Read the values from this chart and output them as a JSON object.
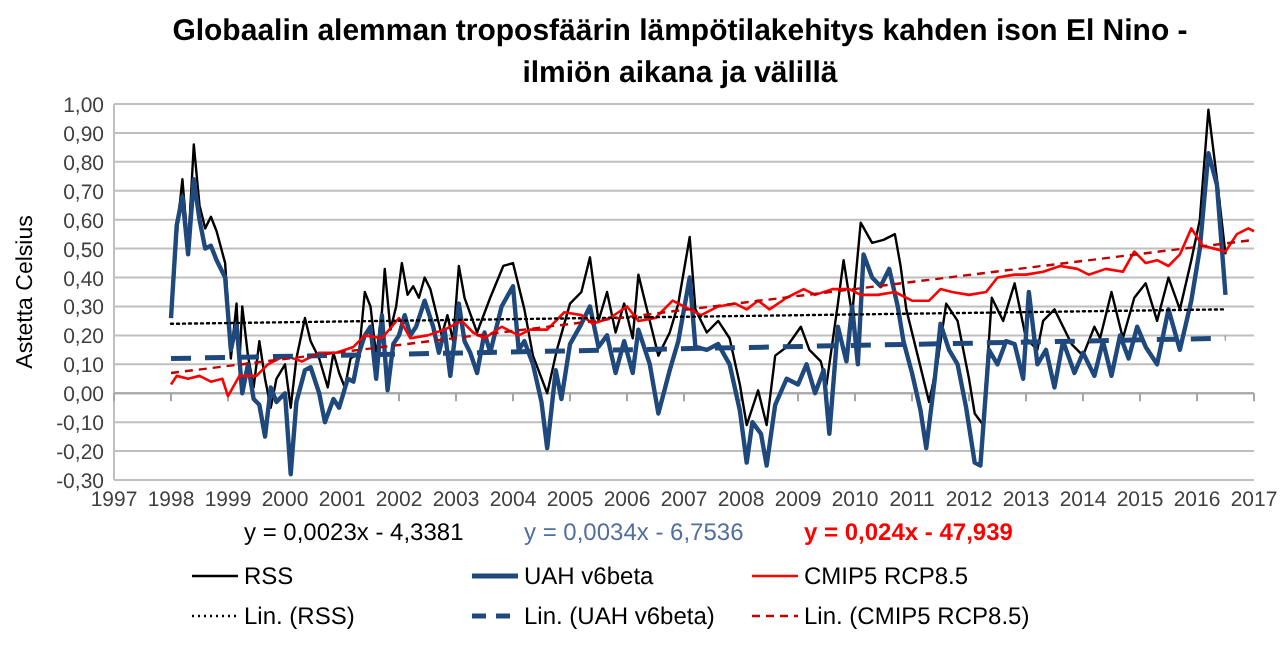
{
  "chart_data": {
    "type": "line",
    "title": "Globaalin alemman troposfäärin lämpötilakehitys kahden ison El Nino - ilmiön aikana ja välillä",
    "ylabel": "Astetta Celsius",
    "xlim": [
      1997,
      2017
    ],
    "xticks": [
      1997,
      1998,
      1999,
      2000,
      2001,
      2002,
      2003,
      2004,
      2005,
      2006,
      2007,
      2008,
      2009,
      2010,
      2011,
      2012,
      2013,
      2014,
      2015,
      2016,
      2017
    ],
    "ylim": [
      -0.3,
      1.0
    ],
    "yticks": [
      {
        "value": -0.3,
        "label": "-0,30"
      },
      {
        "value": -0.2,
        "label": "-0,20"
      },
      {
        "value": -0.1,
        "label": "-0,10"
      },
      {
        "value": 0,
        "label": "0,00"
      },
      {
        "value": 0.1,
        "label": "0,10"
      },
      {
        "value": 0.2,
        "label": "0,20"
      },
      {
        "value": 0.3,
        "label": "0,30"
      },
      {
        "value": 0.4,
        "label": "0,40"
      },
      {
        "value": 0.5,
        "label": "0,50"
      },
      {
        "value": 0.6,
        "label": "0,60"
      },
      {
        "value": 0.7,
        "label": "0,70"
      },
      {
        "value": 0.8,
        "label": "0,80"
      },
      {
        "value": 0.9,
        "label": "0,90"
      },
      {
        "value": 1.0,
        "label": "1,00"
      }
    ],
    "grid": "y",
    "legend": "bottom",
    "annotations": [
      "y = 0,0023x - 4,3381",
      "y = 0,0034x - 6,7536",
      "y = 0,024x - 47,939"
    ],
    "series": [
      {
        "name": "RSS",
        "color": "#000000",
        "x": [
          1998.0,
          1998.1,
          1998.2,
          1998.3,
          1998.4,
          1998.5,
          1998.6,
          1998.7,
          1998.8,
          1998.95,
          1999.05,
          1999.15,
          1999.2,
          1999.25,
          1999.35,
          1999.45,
          1999.55,
          1999.65,
          1999.75,
          1999.85,
          2000.0,
          2000.1,
          2000.2,
          2000.35,
          2000.45,
          2000.6,
          2000.75,
          2000.85,
          2000.95,
          2001.05,
          2001.15,
          2001.3,
          2001.4,
          2001.5,
          2001.6,
          2001.7,
          2001.75,
          2001.85,
          2001.95,
          2002.05,
          2002.15,
          2002.25,
          2002.35,
          2002.45,
          2002.55,
          2002.65,
          2002.75,
          2002.85,
          2002.95,
          2003.05,
          2003.15,
          2003.37,
          2003.6,
          2003.83,
          2004.0,
          2004.2,
          2004.35,
          2004.6,
          2004.77,
          2005.0,
          2005.2,
          2005.35,
          2005.5,
          2005.65,
          2005.8,
          2005.95,
          2006.1,
          2006.2,
          2006.4,
          2006.55,
          2006.75,
          2006.9,
          2007.1,
          2007.2,
          2007.4,
          2007.6,
          2007.8,
          2007.98,
          2008.1,
          2008.3,
          2008.45,
          2008.6,
          2008.8,
          2009.05,
          2009.2,
          2009.4,
          2009.5,
          2009.7,
          2009.8,
          2009.95,
          2010.1,
          2010.3,
          2010.5,
          2010.7,
          2010.8,
          2010.9,
          2011.1,
          2011.3,
          2011.45,
          2011.6,
          2011.8,
          2012.0,
          2012.1,
          2012.25,
          2012.4,
          2012.6,
          2012.8,
          2013.0,
          2013.2,
          2013.3,
          2013.5,
          2013.8,
          2014.0,
          2014.2,
          2014.3,
          2014.5,
          2014.7,
          2014.9,
          2015.1,
          2015.3,
          2015.5,
          2015.7,
          2015.9,
          2016.05,
          2016.2,
          2016.35,
          2016.5
        ],
        "values": [
          0.26,
          0.55,
          0.74,
          0.5,
          0.86,
          0.65,
          0.57,
          0.61,
          0.56,
          0.45,
          0.12,
          0.31,
          0.1,
          0.3,
          0.13,
          0.02,
          0.18,
          0.05,
          -0.05,
          0.05,
          0.1,
          -0.05,
          0.12,
          0.26,
          0.18,
          0.12,
          0.02,
          0.14,
          0.07,
          0.02,
          0.12,
          0.14,
          0.35,
          0.3,
          0.13,
          0.28,
          0.43,
          0.22,
          0.3,
          0.45,
          0.34,
          0.37,
          0.33,
          0.4,
          0.36,
          0.28,
          0.2,
          0.27,
          0.18,
          0.44,
          0.33,
          0.21,
          0.33,
          0.44,
          0.45,
          0.29,
          0.13,
          0.0,
          0.15,
          0.31,
          0.35,
          0.47,
          0.25,
          0.35,
          0.21,
          0.31,
          0.19,
          0.41,
          0.25,
          0.13,
          0.21,
          0.31,
          0.54,
          0.29,
          0.21,
          0.25,
          0.19,
          0.03,
          -0.11,
          0.01,
          -0.11,
          0.13,
          0.16,
          0.23,
          0.15,
          0.11,
          0.03,
          0.31,
          0.46,
          0.27,
          0.59,
          0.52,
          0.53,
          0.55,
          0.44,
          0.29,
          0.13,
          -0.03,
          0.11,
          0.31,
          0.25,
          0.05,
          -0.07,
          -0.11,
          0.33,
          0.25,
          0.38,
          0.19,
          0.15,
          0.25,
          0.29,
          0.17,
          0.13,
          0.23,
          0.19,
          0.35,
          0.19,
          0.33,
          0.38,
          0.25,
          0.4,
          0.29,
          0.46,
          0.6,
          0.98,
          0.74,
          0.48
        ]
      },
      {
        "name": "UAH v6beta",
        "color": "#1f497d",
        "x": [
          1998.0,
          1998.1,
          1998.2,
          1998.3,
          1998.4,
          1998.5,
          1998.6,
          1998.7,
          1998.8,
          1998.95,
          1999.05,
          1999.15,
          1999.25,
          1999.35,
          1999.45,
          1999.55,
          1999.65,
          1999.75,
          1999.85,
          2000.0,
          2000.1,
          2000.2,
          2000.35,
          2000.45,
          2000.6,
          2000.7,
          2000.85,
          2000.95,
          2001.1,
          2001.2,
          2001.3,
          2001.4,
          2001.5,
          2001.6,
          2001.7,
          2001.8,
          2001.9,
          2002.0,
          2002.1,
          2002.2,
          2002.3,
          2002.45,
          2002.6,
          2002.7,
          2002.8,
          2002.9,
          2003.05,
          2003.15,
          2003.25,
          2003.37,
          2003.5,
          2003.6,
          2003.8,
          2004.0,
          2004.1,
          2004.2,
          2004.35,
          2004.5,
          2004.6,
          2004.75,
          2004.85,
          2005.0,
          2005.2,
          2005.35,
          2005.5,
          2005.65,
          2005.8,
          2005.95,
          2006.1,
          2006.2,
          2006.4,
          2006.55,
          2006.75,
          2006.9,
          2007.1,
          2007.2,
          2007.4,
          2007.6,
          2007.8,
          2007.98,
          2008.1,
          2008.2,
          2008.35,
          2008.45,
          2008.6,
          2008.8,
          2009.0,
          2009.15,
          2009.3,
          2009.45,
          2009.55,
          2009.7,
          2009.85,
          2009.95,
          2010.05,
          2010.15,
          2010.3,
          2010.45,
          2010.6,
          2010.75,
          2010.85,
          2011.0,
          2011.15,
          2011.25,
          2011.4,
          2011.5,
          2011.65,
          2011.8,
          2011.95,
          2012.1,
          2012.2,
          2012.35,
          2012.5,
          2012.65,
          2012.8,
          2012.95,
          2013.05,
          2013.2,
          2013.35,
          2013.5,
          2013.65,
          2013.85,
          2014.0,
          2014.2,
          2014.35,
          2014.5,
          2014.65,
          2014.8,
          2014.95,
          2015.1,
          2015.3,
          2015.5,
          2015.7,
          2015.9,
          2016.05,
          2016.2,
          2016.35,
          2016.5
        ],
        "values": [
          0.26,
          0.58,
          0.68,
          0.48,
          0.74,
          0.6,
          0.5,
          0.51,
          0.46,
          0.4,
          0.15,
          0.24,
          0.0,
          0.1,
          -0.02,
          -0.04,
          -0.15,
          0.02,
          -0.03,
          0.0,
          -0.28,
          -0.03,
          0.08,
          0.09,
          0.0,
          -0.1,
          -0.02,
          -0.05,
          0.05,
          0.04,
          0.14,
          0.2,
          0.23,
          0.05,
          0.27,
          0.01,
          0.17,
          0.2,
          0.27,
          0.2,
          0.23,
          0.32,
          0.23,
          0.14,
          0.22,
          0.06,
          0.31,
          0.18,
          0.14,
          0.07,
          0.21,
          0.14,
          0.3,
          0.37,
          0.15,
          0.18,
          0.1,
          -0.03,
          -0.19,
          0.08,
          -0.02,
          0.17,
          0.24,
          0.3,
          0.16,
          0.2,
          0.07,
          0.18,
          0.07,
          0.22,
          0.1,
          -0.07,
          0.08,
          0.18,
          0.4,
          0.16,
          0.15,
          0.17,
          0.1,
          -0.06,
          -0.24,
          -0.1,
          -0.14,
          -0.25,
          -0.04,
          0.05,
          0.03,
          0.1,
          0.0,
          0.08,
          -0.14,
          0.23,
          0.11,
          0.3,
          0.1,
          0.48,
          0.4,
          0.37,
          0.43,
          0.3,
          0.18,
          0.07,
          -0.06,
          -0.19,
          0.05,
          0.24,
          0.15,
          0.1,
          -0.05,
          -0.24,
          -0.25,
          0.15,
          0.1,
          0.18,
          0.17,
          0.05,
          0.35,
          0.1,
          0.15,
          0.02,
          0.18,
          0.07,
          0.14,
          0.06,
          0.18,
          0.06,
          0.2,
          0.12,
          0.23,
          0.16,
          0.1,
          0.29,
          0.15,
          0.32,
          0.5,
          0.83,
          0.72,
          0.34
        ]
      },
      {
        "name": "CMIP5 RCP8.5",
        "color": "#ff0000",
        "x": [
          1998.0,
          1998.1,
          1998.3,
          1998.5,
          1998.7,
          1998.9,
          1999.0,
          1999.2,
          1999.5,
          1999.7,
          2000.0,
          2000.3,
          2000.6,
          2000.9,
          2001.2,
          2001.4,
          2001.7,
          2002.0,
          2002.2,
          2002.5,
          2002.8,
          2003.1,
          2003.3,
          2003.5,
          2003.8,
          2004.1,
          2004.3,
          2004.6,
          2004.9,
          2005.2,
          2005.4,
          2005.7,
          2006.0,
          2006.2,
          2006.5,
          2006.8,
          2007.1,
          2007.3,
          2007.6,
          2007.9,
          2008.1,
          2008.3,
          2008.5,
          2008.8,
          2009.1,
          2009.3,
          2009.6,
          2009.9,
          2010.1,
          2010.4,
          2010.7,
          2011.0,
          2011.3,
          2011.5,
          2011.7,
          2012.0,
          2012.3,
          2012.5,
          2012.8,
          2013.0,
          2013.3,
          2013.6,
          2013.9,
          2014.1,
          2014.4,
          2014.7,
          2014.9,
          2015.1,
          2015.3,
          2015.5,
          2015.7,
          2015.9,
          2016.1,
          2016.3,
          2016.5,
          2016.7,
          2016.9,
          2017.0
        ],
        "values": [
          0.03,
          0.06,
          0.05,
          0.06,
          0.04,
          0.05,
          -0.01,
          0.06,
          0.06,
          0.1,
          0.13,
          0.11,
          0.14,
          0.14,
          0.16,
          0.2,
          0.19,
          0.26,
          0.19,
          0.2,
          0.22,
          0.25,
          0.21,
          0.19,
          0.23,
          0.2,
          0.22,
          0.22,
          0.28,
          0.27,
          0.24,
          0.26,
          0.3,
          0.25,
          0.26,
          0.32,
          0.29,
          0.27,
          0.3,
          0.31,
          0.29,
          0.32,
          0.29,
          0.33,
          0.36,
          0.34,
          0.36,
          0.36,
          0.34,
          0.34,
          0.35,
          0.32,
          0.32,
          0.36,
          0.35,
          0.34,
          0.35,
          0.4,
          0.41,
          0.41,
          0.42,
          0.44,
          0.43,
          0.41,
          0.43,
          0.42,
          0.49,
          0.45,
          0.46,
          0.44,
          0.48,
          0.57,
          0.51,
          0.5,
          0.49,
          0.55,
          0.57,
          0.56
        ]
      },
      {
        "name": "Lin. (RSS)",
        "color": "#000000",
        "line_style": "dotted",
        "x": [
          1998.0,
          2016.5
        ],
        "values": [
          0.24,
          0.29
        ]
      },
      {
        "name": "Lin. (UAH v6beta)",
        "color": "#1f497d",
        "line_style": "dashed",
        "x": [
          1998.0,
          2016.5
        ],
        "values": [
          0.12,
          0.19
        ]
      },
      {
        "name": "Lin. (CMIP5 RCP8.5)",
        "color": "#c00000",
        "line_style": "dashed",
        "x": [
          1998.0,
          2017.0
        ],
        "values": [
          0.07,
          0.53
        ]
      }
    ]
  }
}
